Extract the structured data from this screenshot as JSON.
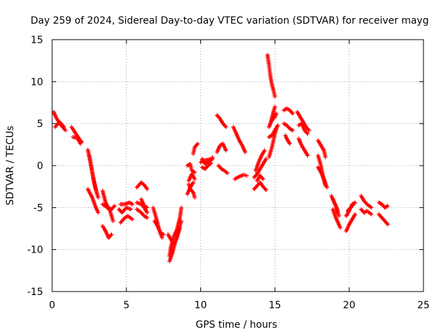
{
  "chart_data": {
    "type": "scatter",
    "title": "Day 259 of 2024, Sidereal Day-to-day VTEC variation (SDTVAR) for receiver mayg",
    "xlabel": "GPS time / hours",
    "ylabel": "SDTVAR / TECUs",
    "xlim": [
      0,
      25
    ],
    "ylim": [
      -15,
      15
    ],
    "xticks": [
      0,
      5,
      10,
      15,
      20,
      25
    ],
    "xtick_labels": [
      "0",
      "5",
      "10",
      "15",
      "20",
      "25"
    ],
    "yticks": [
      -15,
      -10,
      -5,
      0,
      5,
      10,
      15
    ],
    "ytick_labels": [
      "-15",
      "-10",
      "-5",
      "0",
      "5",
      "10",
      "15"
    ],
    "grid": true,
    "marker": "+",
    "series_color": "#ff0000",
    "tracks": [
      [
        [
          0.1,
          6.4
        ],
        [
          0.3,
          5.6
        ],
        [
          0.6,
          4.8
        ],
        [
          0.9,
          4.2
        ]
      ],
      [
        [
          0.2,
          4.6
        ],
        [
          0.5,
          5.2
        ],
        [
          0.8,
          4.6
        ]
      ],
      [
        [
          1.3,
          4.6
        ],
        [
          1.6,
          3.8
        ],
        [
          1.9,
          3.0
        ],
        [
          2.0,
          2.8
        ]
      ],
      [
        [
          1.4,
          3.4
        ],
        [
          1.7,
          3.3
        ],
        [
          1.9,
          2.6
        ]
      ],
      [
        [
          2.4,
          1.9
        ],
        [
          2.6,
          0.2
        ],
        [
          2.8,
          -1.8
        ],
        [
          3.0,
          -3.2
        ]
      ],
      [
        [
          2.5,
          1.2
        ],
        [
          2.7,
          -0.8
        ],
        [
          2.9,
          -2.6
        ],
        [
          3.1,
          -3.8
        ]
      ],
      [
        [
          2.4,
          -2.8
        ],
        [
          2.7,
          -3.8
        ],
        [
          2.9,
          -4.8
        ],
        [
          3.1,
          -5.6
        ]
      ],
      [
        [
          3.4,
          -3.0
        ],
        [
          3.6,
          -4.4
        ],
        [
          3.9,
          -5.4
        ],
        [
          4.1,
          -6.6
        ]
      ],
      [
        [
          3.4,
          -4.6
        ],
        [
          3.7,
          -5.0
        ],
        [
          4.0,
          -5.2
        ],
        [
          4.2,
          -4.8
        ]
      ],
      [
        [
          3.4,
          -7.2
        ],
        [
          3.6,
          -7.8
        ],
        [
          3.8,
          -8.6
        ],
        [
          4.0,
          -8.2
        ]
      ],
      [
        [
          4.6,
          -4.6
        ],
        [
          4.9,
          -4.6
        ],
        [
          5.2,
          -4.4
        ],
        [
          5.4,
          -4.6
        ]
      ],
      [
        [
          4.6,
          -6.8
        ],
        [
          4.9,
          -6.2
        ],
        [
          5.1,
          -6.0
        ],
        [
          5.4,
          -6.4
        ]
      ],
      [
        [
          4.5,
          -5.2
        ],
        [
          4.7,
          -5.6
        ],
        [
          5.0,
          -5.0
        ],
        [
          5.3,
          -5.2
        ]
      ],
      [
        [
          5.7,
          -2.6
        ],
        [
          6.0,
          -2.0
        ],
        [
          6.2,
          -2.3
        ],
        [
          6.4,
          -2.8
        ]
      ],
      [
        [
          5.7,
          -4.4
        ],
        [
          6.0,
          -4.6
        ],
        [
          6.2,
          -5.0
        ],
        [
          6.4,
          -5.6
        ]
      ],
      [
        [
          5.7,
          -5.2
        ],
        [
          6.0,
          -5.6
        ],
        [
          6.2,
          -6.0
        ],
        [
          6.4,
          -6.2
        ]
      ],
      [
        [
          6.0,
          -4.0
        ],
        [
          6.2,
          -4.8
        ],
        [
          6.4,
          -5.0
        ]
      ],
      [
        [
          6.8,
          -5.0
        ],
        [
          7.0,
          -6.2
        ],
        [
          7.2,
          -7.6
        ],
        [
          7.4,
          -8.6
        ]
      ],
      [
        [
          6.9,
          -6.6
        ],
        [
          7.1,
          -7.2
        ],
        [
          7.3,
          -8.0
        ],
        [
          7.5,
          -8.2
        ]
      ],
      [
        [
          7.9,
          -10.8
        ],
        [
          8.0,
          -9.6
        ],
        [
          8.2,
          -8.4
        ],
        [
          8.4,
          -7.6
        ],
        [
          8.6,
          -6.2
        ],
        [
          8.7,
          -5.0
        ]
      ],
      [
        [
          7.8,
          -8.2
        ],
        [
          8.0,
          -8.8
        ],
        [
          8.2,
          -9.4
        ],
        [
          8.4,
          -8.6
        ],
        [
          8.6,
          -7.4
        ]
      ],
      [
        [
          7.9,
          -11.4
        ],
        [
          8.1,
          -10.4
        ],
        [
          8.3,
          -9.0
        ],
        [
          8.5,
          -7.8
        ],
        [
          8.7,
          -6.6
        ]
      ],
      [
        [
          9.1,
          0.0
        ],
        [
          9.3,
          0.2
        ],
        [
          9.4,
          -0.6
        ],
        [
          9.6,
          -0.8
        ]
      ],
      [
        [
          9.2,
          -2.2
        ],
        [
          9.3,
          -2.8
        ],
        [
          9.5,
          -3.2
        ],
        [
          9.6,
          -3.8
        ]
      ],
      [
        [
          9.2,
          -1.8
        ],
        [
          9.4,
          -1.0
        ],
        [
          9.6,
          -1.6
        ]
      ],
      [
        [
          9.1,
          -3.4
        ],
        [
          9.3,
          -2.6
        ],
        [
          9.5,
          -2.0
        ]
      ],
      [
        [
          9.5,
          1.4
        ],
        [
          9.6,
          2.2
        ],
        [
          9.8,
          2.6
        ]
      ],
      [
        [
          10.1,
          0.8
        ],
        [
          10.3,
          0.2
        ],
        [
          10.5,
          0.4
        ],
        [
          10.7,
          0.6
        ],
        [
          10.8,
          1.0
        ]
      ],
      [
        [
          10.1,
          -0.2
        ],
        [
          10.3,
          -0.4
        ],
        [
          10.5,
          0.0
        ],
        [
          10.7,
          0.3
        ]
      ],
      [
        [
          10.0,
          0.4
        ],
        [
          10.2,
          0.6
        ],
        [
          10.5,
          0.7
        ],
        [
          10.8,
          0.8
        ]
      ],
      [
        [
          11.1,
          6.0
        ],
        [
          11.3,
          5.6
        ],
        [
          11.5,
          5.0
        ],
        [
          11.7,
          4.6
        ]
      ],
      [
        [
          11.1,
          1.6
        ],
        [
          11.3,
          2.4
        ],
        [
          11.5,
          2.6
        ],
        [
          11.7,
          1.8
        ]
      ],
      [
        [
          11.2,
          0.0
        ],
        [
          11.4,
          -0.4
        ],
        [
          11.6,
          -0.6
        ],
        [
          11.8,
          -0.9
        ]
      ],
      [
        [
          12.2,
          4.6
        ],
        [
          12.4,
          3.8
        ],
        [
          12.6,
          3.0
        ],
        [
          12.8,
          2.4
        ],
        [
          13.0,
          1.6
        ]
      ],
      [
        [
          12.3,
          -1.6
        ],
        [
          12.6,
          -1.3
        ],
        [
          12.9,
          -1.1
        ],
        [
          13.1,
          -1.2
        ]
      ],
      [
        [
          13.6,
          -1.4
        ],
        [
          13.8,
          -1.0
        ],
        [
          14.0,
          -0.4
        ],
        [
          14.2,
          0.2
        ],
        [
          14.4,
          0.8
        ]
      ],
      [
        [
          13.6,
          -2.8
        ],
        [
          13.8,
          -2.4
        ],
        [
          14.0,
          -2.0
        ],
        [
          14.2,
          -2.5
        ],
        [
          14.4,
          -2.9
        ]
      ],
      [
        [
          13.7,
          -0.6
        ],
        [
          13.9,
          0.4
        ],
        [
          14.1,
          1.2
        ],
        [
          14.3,
          1.8
        ]
      ],
      [
        [
          13.8,
          -1.8
        ],
        [
          14.0,
          -1.2
        ],
        [
          14.2,
          -1.6
        ]
      ],
      [
        [
          14.5,
          13.2
        ],
        [
          14.6,
          12.0
        ],
        [
          14.7,
          10.6
        ],
        [
          14.8,
          9.6
        ],
        [
          14.9,
          9.0
        ],
        [
          15.0,
          8.2
        ]
      ],
      [
        [
          14.6,
          4.6
        ],
        [
          14.8,
          5.4
        ],
        [
          15.0,
          5.8
        ],
        [
          15.1,
          6.2
        ]
      ],
      [
        [
          14.6,
          1.0
        ],
        [
          14.8,
          2.2
        ],
        [
          15.0,
          3.8
        ],
        [
          15.1,
          4.4
        ]
      ],
      [
        [
          14.7,
          5.0
        ],
        [
          14.9,
          6.4
        ],
        [
          15.0,
          7.0
        ]
      ],
      [
        [
          14.6,
          3.4
        ],
        [
          14.8,
          3.6
        ],
        [
          15.0,
          4.2
        ],
        [
          15.2,
          4.8
        ]
      ],
      [
        [
          15.6,
          6.6
        ],
        [
          15.8,
          6.8
        ],
        [
          16.0,
          6.6
        ],
        [
          16.2,
          6.2
        ]
      ],
      [
        [
          15.6,
          5.0
        ],
        [
          15.8,
          4.8
        ],
        [
          16.0,
          4.4
        ],
        [
          16.2,
          4.2
        ]
      ],
      [
        [
          15.7,
          3.6
        ],
        [
          15.8,
          3.2
        ],
        [
          16.0,
          2.6
        ]
      ],
      [
        [
          16.5,
          6.4
        ],
        [
          16.7,
          5.8
        ],
        [
          16.9,
          5.2
        ],
        [
          17.1,
          4.6
        ],
        [
          17.3,
          4.2
        ]
      ],
      [
        [
          16.6,
          4.8
        ],
        [
          16.8,
          5.0
        ],
        [
          17.0,
          4.2
        ],
        [
          17.2,
          3.8
        ]
      ],
      [
        [
          16.6,
          3.2
        ],
        [
          16.8,
          2.4
        ],
        [
          17.0,
          1.8
        ],
        [
          17.2,
          1.2
        ]
      ],
      [
        [
          17.9,
          3.0
        ],
        [
          18.1,
          2.4
        ],
        [
          18.3,
          1.8
        ],
        [
          18.4,
          1.0
        ]
      ],
      [
        [
          17.9,
          1.2
        ],
        [
          18.1,
          0.0
        ],
        [
          18.2,
          -1.0
        ],
        [
          18.4,
          -2.4
        ]
      ],
      [
        [
          17.9,
          -0.2
        ],
        [
          18.1,
          -0.8
        ],
        [
          18.3,
          -1.6
        ],
        [
          18.5,
          -2.6
        ]
      ],
      [
        [
          18.8,
          -3.6
        ],
        [
          19.0,
          -4.4
        ],
        [
          19.2,
          -5.2
        ],
        [
          19.3,
          -6.0
        ]
      ],
      [
        [
          18.9,
          -5.2
        ],
        [
          19.1,
          -6.2
        ],
        [
          19.3,
          -7.0
        ],
        [
          19.4,
          -7.4
        ]
      ],
      [
        [
          18.9,
          -4.0
        ],
        [
          19.1,
          -4.8
        ],
        [
          19.2,
          -5.6
        ]
      ],
      [
        [
          19.8,
          -6.0
        ],
        [
          20.0,
          -5.4
        ],
        [
          20.2,
          -4.6
        ],
        [
          20.4,
          -4.4
        ]
      ],
      [
        [
          19.8,
          -7.8
        ],
        [
          20.0,
          -7.0
        ],
        [
          20.2,
          -6.4
        ],
        [
          20.4,
          -5.8
        ]
      ],
      [
        [
          19.9,
          -5.4
        ],
        [
          20.1,
          -5.0
        ],
        [
          20.3,
          -4.6
        ]
      ],
      [
        [
          20.8,
          -3.6
        ],
        [
          21.0,
          -4.2
        ],
        [
          21.2,
          -4.6
        ],
        [
          21.5,
          -5.0
        ]
      ],
      [
        [
          20.8,
          -5.2
        ],
        [
          21.0,
          -5.6
        ],
        [
          21.2,
          -5.4
        ],
        [
          21.5,
          -5.8
        ]
      ],
      [
        [
          22.0,
          -4.4
        ],
        [
          22.2,
          -4.6
        ],
        [
          22.4,
          -5.0
        ],
        [
          22.6,
          -4.8
        ]
      ],
      [
        [
          22.0,
          -5.8
        ],
        [
          22.2,
          -6.2
        ],
        [
          22.4,
          -6.6
        ],
        [
          22.6,
          -7.0
        ]
      ]
    ]
  }
}
